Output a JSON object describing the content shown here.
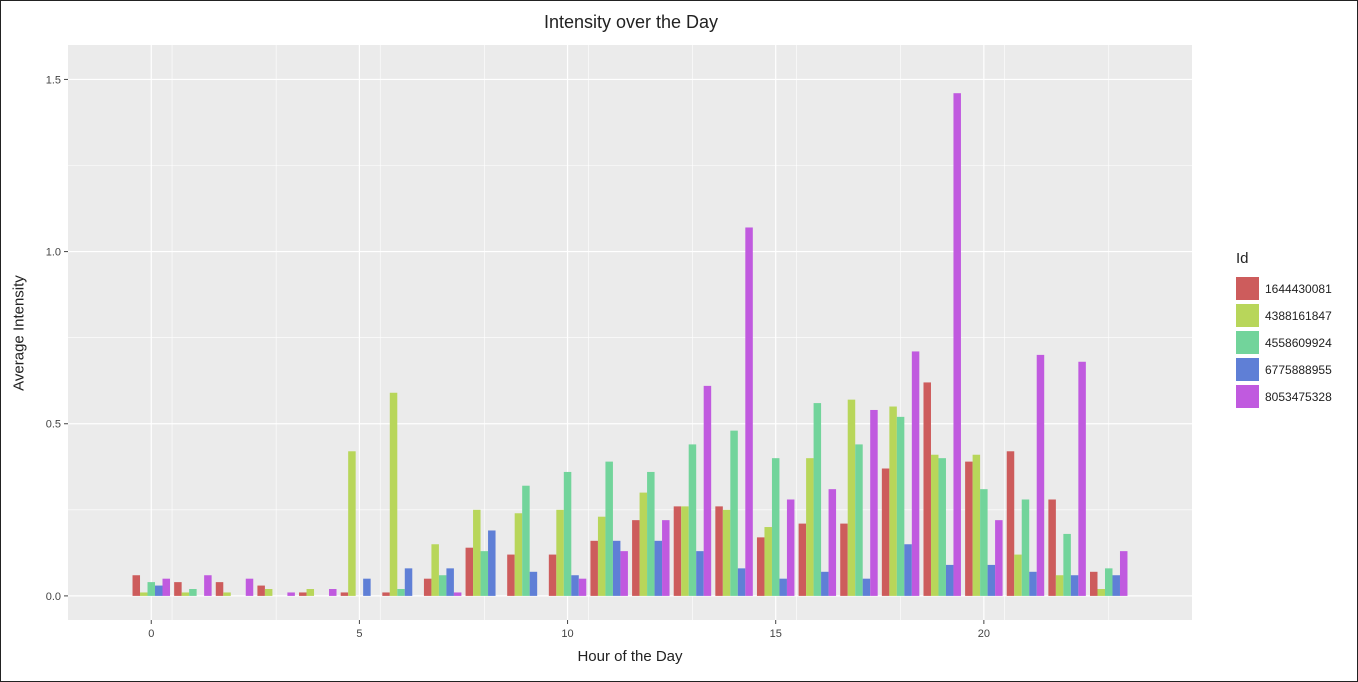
{
  "chart_data": {
    "type": "bar",
    "title": "Intensity over the Day",
    "xlabel": "Hour of the Day",
    "ylabel": "Average Intensity",
    "xlim": [
      -2,
      25
    ],
    "ylim": [
      -0.07,
      1.6
    ],
    "x_ticks": [
      0,
      5,
      10,
      15,
      20
    ],
    "y_ticks": [
      0.0,
      0.5,
      1.0,
      1.5
    ],
    "y_tick_labels": [
      "0.0",
      "0.5",
      "1.0",
      "1.5"
    ],
    "grid": true,
    "legend_title": "Id",
    "legend_position": "right",
    "categories": [
      0,
      1,
      2,
      3,
      4,
      5,
      6,
      7,
      8,
      9,
      10,
      11,
      12,
      13,
      14,
      15,
      16,
      17,
      18,
      19,
      20,
      21,
      22,
      23
    ],
    "series": [
      {
        "name": "1644430081",
        "color": "#cd5c5c",
        "values": [
          0.06,
          0.04,
          0.04,
          0.03,
          0.01,
          0.01,
          0.01,
          0.05,
          0.14,
          0.12,
          0.12,
          0.16,
          0.22,
          0.26,
          0.26,
          0.17,
          0.21,
          0.21,
          0.37,
          0.62,
          0.39,
          0.42,
          0.28,
          0.07
        ]
      },
      {
        "name": "4388161847",
        "color": "#b8d65a",
        "values": [
          0.01,
          0.01,
          0.01,
          0.02,
          0.02,
          0.42,
          0.59,
          0.15,
          0.25,
          0.24,
          0.25,
          0.23,
          0.3,
          0.26,
          0.25,
          0.2,
          0.4,
          0.57,
          0.55,
          0.41,
          0.41,
          0.12,
          0.06,
          0.02
        ]
      },
      {
        "name": "4558609924",
        "color": "#72d49b",
        "values": [
          0.04,
          0.02,
          0.0,
          0.0,
          0.0,
          0.0,
          0.02,
          0.06,
          0.13,
          0.32,
          0.36,
          0.39,
          0.36,
          0.44,
          0.48,
          0.4,
          0.56,
          0.44,
          0.52,
          0.4,
          0.31,
          0.28,
          0.18,
          0.08
        ]
      },
      {
        "name": "6775888955",
        "color": "#5f7fd6",
        "values": [
          0.03,
          0.0,
          0.0,
          0.0,
          0.0,
          0.05,
          0.08,
          0.08,
          0.19,
          0.07,
          0.06,
          0.16,
          0.16,
          0.13,
          0.08,
          0.05,
          0.07,
          0.05,
          0.15,
          0.09,
          0.09,
          0.07,
          0.06,
          0.06
        ]
      },
      {
        "name": "8053475328",
        "color": "#c05adf",
        "values": [
          0.05,
          0.06,
          0.05,
          0.01,
          0.02,
          0.0,
          0.0,
          0.01,
          0.0,
          0.0,
          0.05,
          0.13,
          0.22,
          0.61,
          1.07,
          0.28,
          0.31,
          0.54,
          0.71,
          1.46,
          0.22,
          0.7,
          0.68,
          0.13
        ]
      }
    ]
  }
}
